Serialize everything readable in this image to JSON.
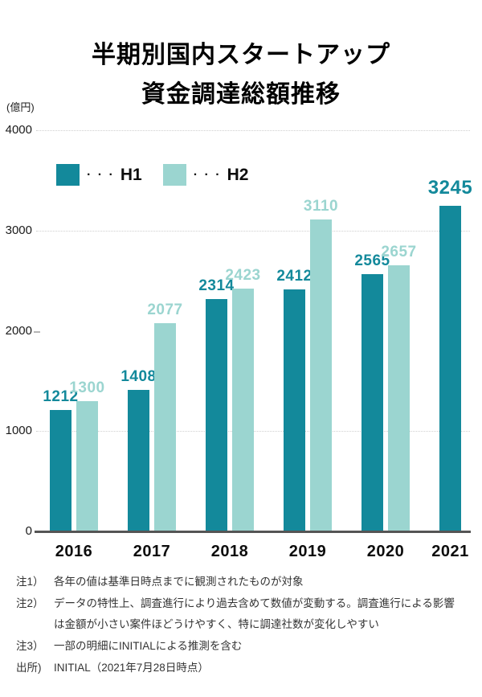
{
  "title": {
    "line1": "半期別国内スタートアップ",
    "line2": "資金調達総額推移"
  },
  "chart_data": {
    "type": "bar",
    "title": "半期別国内スタートアップ資金調達総額推移",
    "unit_label": "(億円)",
    "categories": [
      "2016",
      "2017",
      "2018",
      "2019",
      "2020",
      "2021"
    ],
    "series": [
      {
        "name": "H1",
        "color": "#13899b",
        "values": [
          1212,
          1408,
          2314,
          2412,
          2565,
          3245
        ]
      },
      {
        "name": "H2",
        "color": "#9bd5d0",
        "values": [
          1300,
          2077,
          2423,
          3110,
          2657,
          null
        ]
      }
    ],
    "ylim": [
      0,
      4000
    ],
    "yticks": [
      {
        "label": "0",
        "value": 0,
        "grid": false
      },
      {
        "label": "1000",
        "value": 1000,
        "grid": true
      },
      {
        "label": "2000",
        "value": 2000,
        "grid": false
      },
      {
        "label": "3000",
        "value": 3000,
        "grid": true
      },
      {
        "label": "4000",
        "value": 4000,
        "grid": true
      }
    ],
    "grid_style": "dotted",
    "legend_position": "top-left",
    "legend_separator": "· · ·",
    "legend": [
      {
        "label": "H1",
        "color": "#13899b"
      },
      {
        "label": "H2",
        "color": "#9bd5d0"
      }
    ],
    "emphasized": {
      "category": "2021",
      "series": "H1"
    }
  },
  "notes": [
    {
      "marker": "注1）",
      "text": "各年の値は基準日時点までに観測されたものが対象"
    },
    {
      "marker": "注2）",
      "text": "データの特性上、調査進行により過去含めて数値が変動する。調査進行による影響は金額が小さい案件ほどうけやすく、特に調達社数が変化しやすい"
    },
    {
      "marker": "注3）",
      "text": "一部の明細にINITIALによる推測を含む"
    },
    {
      "marker": "出所)",
      "text": "INITIAL（2021年7月28日時点）"
    }
  ]
}
